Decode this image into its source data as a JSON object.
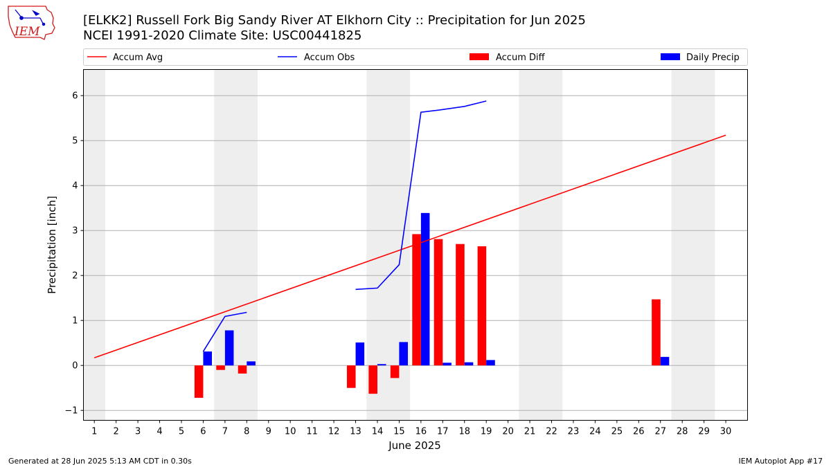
{
  "header": {
    "logo_text": "IEM",
    "title_line1": "[ELKK2] Russell Fork Big Sandy River  AT Elkhorn City :: Precipitation for Jun 2025",
    "title_line2": "NCEI 1991-2020 Climate Site: USC00441825"
  },
  "footer": {
    "generated": "Generated at 28 Jun 2025 5:13 AM CDT in 0.30s",
    "app": "IEM Autoplot App #17"
  },
  "colors": {
    "accum_avg": "#ff0000",
    "accum_obs": "#0000ff",
    "accum_diff": "#ff0000",
    "daily_precip": "#0000ff",
    "weekend_shade": "#eeeeee",
    "grid": "#b0b0b0"
  },
  "chart_data": {
    "type": "bar",
    "xlabel": "June 2025",
    "ylabel": "Precipitation [inch]",
    "xlim": [
      0.5,
      31
    ],
    "ylim": [
      -1.22,
      6.58
    ],
    "x_ticks": [
      1,
      2,
      3,
      4,
      5,
      6,
      7,
      8,
      9,
      10,
      11,
      12,
      13,
      14,
      15,
      16,
      17,
      18,
      19,
      20,
      21,
      22,
      23,
      24,
      25,
      26,
      27,
      28,
      29,
      30
    ],
    "x_tick_labels": [
      "1",
      "2",
      "3",
      "4",
      "5",
      "6",
      "7",
      "8",
      "9",
      "10",
      "11",
      "12",
      "13",
      "14",
      "15",
      "16",
      "17",
      "18",
      "19",
      "20",
      "21",
      "22",
      "23",
      "24",
      "25",
      "26",
      "27",
      "28",
      "29",
      "30"
    ],
    "y_ticks": [
      -1,
      0,
      1,
      2,
      3,
      4,
      5,
      6
    ],
    "y_tick_labels": [
      "−1",
      "0",
      "1",
      "2",
      "3",
      "4",
      "5",
      "6"
    ],
    "y_grid": true,
    "legend_position": "top, above plot",
    "shaded_days": [
      [
        0.5,
        1.5
      ],
      [
        6.5,
        8.5
      ],
      [
        13.5,
        15.5
      ],
      [
        20.5,
        22.5
      ],
      [
        27.5,
        29.5
      ]
    ],
    "series": [
      {
        "name": "Accum Avg",
        "kind": "line",
        "color": "#ff0000",
        "points": [
          [
            1,
            0.17
          ],
          [
            30,
            5.12
          ]
        ]
      },
      {
        "name": "Accum Obs",
        "kind": "line",
        "color": "#0000ff",
        "segments": [
          [
            [
              6,
              0.31
            ],
            [
              7,
              1.09
            ],
            [
              8,
              1.18
            ]
          ],
          [
            [
              13,
              1.69
            ],
            [
              14,
              1.72
            ],
            [
              15,
              2.24
            ],
            [
              16,
              5.63
            ],
            [
              17,
              5.69
            ],
            [
              18,
              5.76
            ],
            [
              19,
              5.88
            ]
          ]
        ]
      },
      {
        "name": "Accum Diff",
        "kind": "bar",
        "color": "#ff0000",
        "data": [
          [
            6,
            -0.72
          ],
          [
            7,
            -0.1
          ],
          [
            8,
            -0.18
          ],
          [
            13,
            -0.5
          ],
          [
            14,
            -0.63
          ],
          [
            15,
            -0.28
          ],
          [
            16,
            2.92
          ],
          [
            17,
            2.81
          ],
          [
            18,
            2.7
          ],
          [
            19,
            2.65
          ],
          [
            27,
            1.47
          ]
        ]
      },
      {
        "name": "Daily Precip",
        "kind": "bar",
        "color": "#0000ff",
        "data": [
          [
            6,
            0.31
          ],
          [
            7,
            0.78
          ],
          [
            8,
            0.09
          ],
          [
            13,
            0.51
          ],
          [
            14,
            0.03
          ],
          [
            15,
            0.52
          ],
          [
            16,
            3.39
          ],
          [
            17,
            0.06
          ],
          [
            18,
            0.07
          ],
          [
            19,
            0.12
          ],
          [
            27,
            0.19
          ]
        ]
      }
    ]
  }
}
